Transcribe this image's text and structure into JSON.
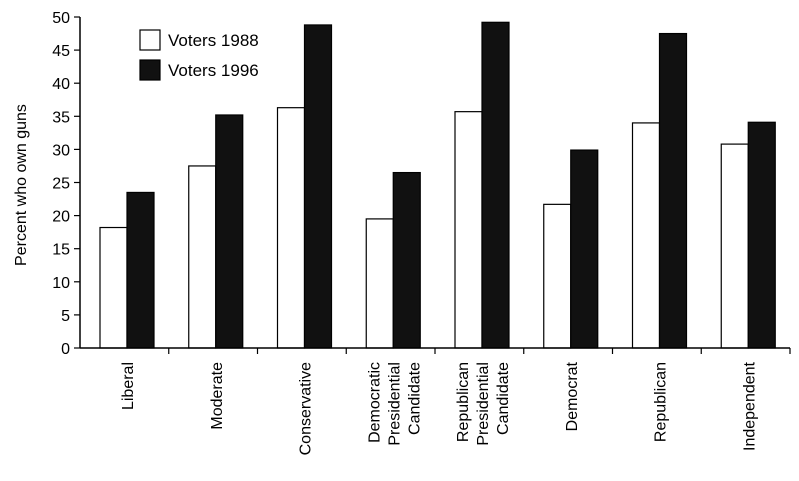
{
  "chart_data": {
    "type": "bar",
    "ylabel": "Percent who own guns",
    "ylim": [
      0,
      50
    ],
    "yticks": [
      0,
      5,
      10,
      15,
      20,
      25,
      30,
      35,
      40,
      45,
      50
    ],
    "categories": [
      [
        "Liberal"
      ],
      [
        "Moderate"
      ],
      [
        "Conservative"
      ],
      [
        "Democratic",
        "Presidential",
        "Candidate"
      ],
      [
        "Republican",
        "Presidential",
        "Candidate"
      ],
      [
        "Democrat"
      ],
      [
        "Republican"
      ],
      [
        "Independent"
      ]
    ],
    "series": [
      {
        "name": "Voters 1988",
        "color": "#ffffff",
        "values": [
          18.2,
          27.5,
          36.3,
          19.5,
          35.7,
          21.7,
          34.0,
          30.8
        ]
      },
      {
        "name": "Voters 1996",
        "color": "#111111",
        "values": [
          23.5,
          35.2,
          48.8,
          26.5,
          49.2,
          29.9,
          47.5,
          34.1
        ]
      }
    ],
    "legend_position": "top-left",
    "grid": false
  }
}
